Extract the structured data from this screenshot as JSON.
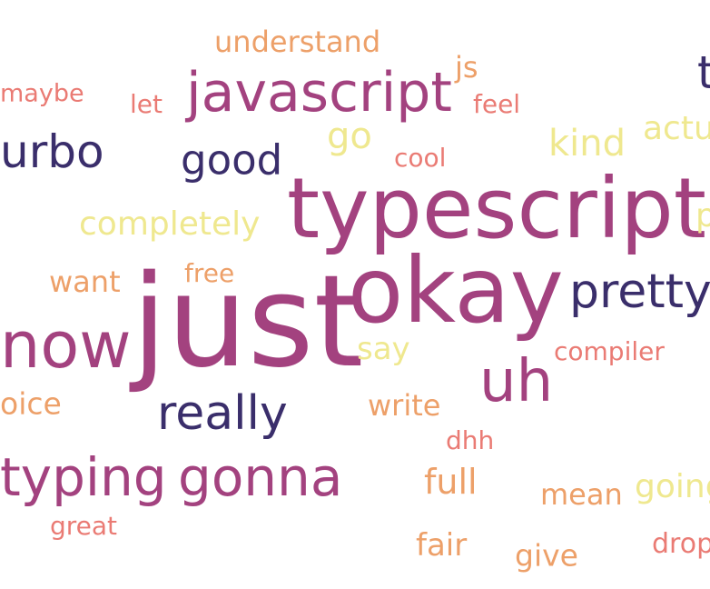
{
  "palette": {
    "dark_navy": "#3a2e6b",
    "magenta": "#a3427f",
    "coral": "#ea7b74",
    "orange": "#eda069",
    "yellow": "#efe88f"
  },
  "words": [
    {
      "text": "understand",
      "color": "#eda069"
    },
    {
      "text": "js",
      "color": "#eda069"
    },
    {
      "text": "t",
      "color": "#3a2e6b"
    },
    {
      "text": "maybe",
      "color": "#ea7b74"
    },
    {
      "text": "let",
      "color": "#ea7b74"
    },
    {
      "text": "javascript",
      "color": "#a3427f"
    },
    {
      "text": "feel",
      "color": "#ea7b74"
    },
    {
      "text": "urbo",
      "color": "#3a2e6b"
    },
    {
      "text": "go",
      "color": "#efe88f"
    },
    {
      "text": "kind",
      "color": "#efe88f"
    },
    {
      "text": "actu",
      "color": "#efe88f"
    },
    {
      "text": "good",
      "color": "#3a2e6b"
    },
    {
      "text": "cool",
      "color": "#ea7b74"
    },
    {
      "text": "typescript",
      "color": "#a3427f"
    },
    {
      "text": "completely",
      "color": "#efe88f"
    },
    {
      "text": "p",
      "color": "#efe88f"
    },
    {
      "text": "free",
      "color": "#eda069"
    },
    {
      "text": "want",
      "color": "#eda069"
    },
    {
      "text": "okay",
      "color": "#a3427f"
    },
    {
      "text": "pretty",
      "color": "#3a2e6b"
    },
    {
      "text": "just",
      "color": "#a3427f"
    },
    {
      "text": "now",
      "color": "#a3427f"
    },
    {
      "text": "say",
      "color": "#efe88f"
    },
    {
      "text": "compiler",
      "color": "#ea7b74"
    },
    {
      "text": "uh",
      "color": "#a3427f"
    },
    {
      "text": "oice",
      "color": "#eda069"
    },
    {
      "text": "really",
      "color": "#3a2e6b"
    },
    {
      "text": "write",
      "color": "#eda069"
    },
    {
      "text": "dhh",
      "color": "#ea7b74"
    },
    {
      "text": "typing",
      "color": "#a3427f"
    },
    {
      "text": "gonna",
      "color": "#a3427f"
    },
    {
      "text": "full",
      "color": "#eda069"
    },
    {
      "text": "mean",
      "color": "#eda069"
    },
    {
      "text": "going",
      "color": "#efe88f"
    },
    {
      "text": "great",
      "color": "#ea7b74"
    },
    {
      "text": "fair",
      "color": "#eda069"
    },
    {
      "text": "give",
      "color": "#eda069"
    },
    {
      "text": "drop",
      "color": "#ea7b74"
    }
  ]
}
